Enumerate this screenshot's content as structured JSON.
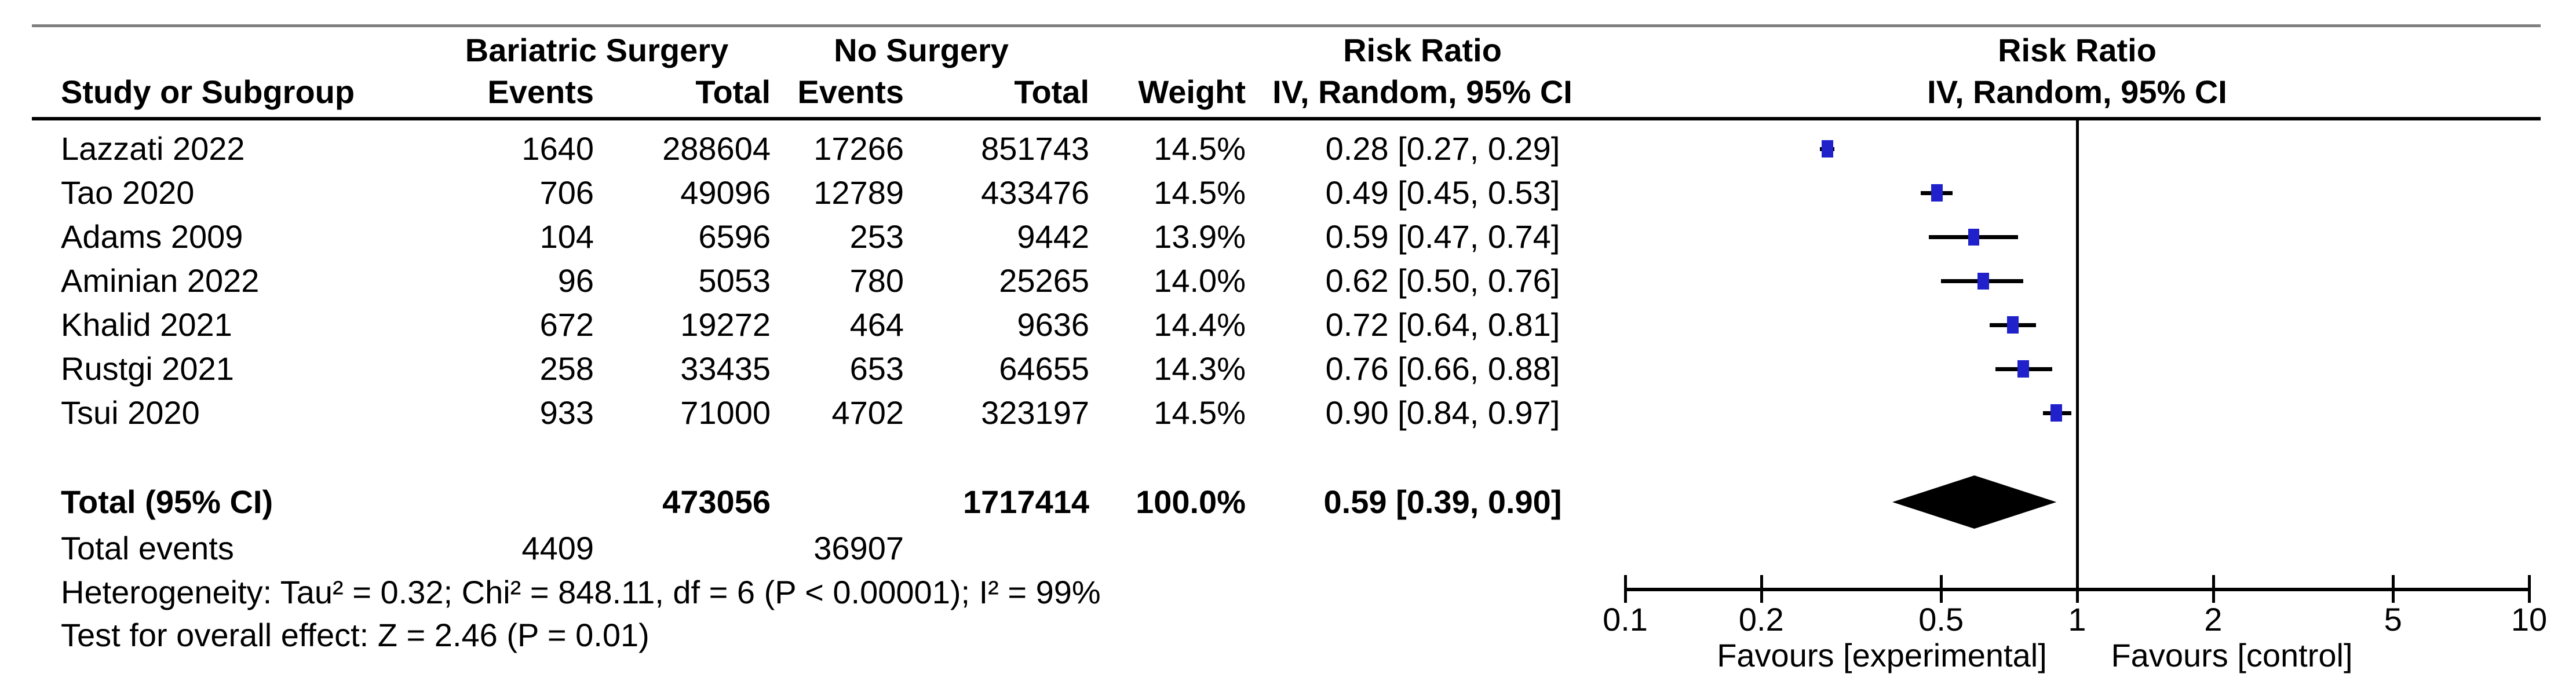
{
  "figure_colors": {
    "marker_blue": "#2121CC",
    "diamond_black": "#000000",
    "top_rule_gray": "#808080",
    "text": "#000000"
  },
  "header": {
    "group_experimental": "Bariatric Surgery",
    "group_control": "No Surgery",
    "effect_col_title": "Risk Ratio",
    "plot_col_title": "Risk Ratio",
    "col_study": "Study or Subgroup",
    "col_events_exp": "Events",
    "col_total_exp": "Total",
    "col_events_ctl": "Events",
    "col_total_ctl": "Total",
    "col_weight": "Weight",
    "col_effect_method": "IV, Random, 95% CI",
    "plot_col_method": "IV, Random, 95% CI"
  },
  "rows": [
    {
      "study": "Lazzati 2022",
      "events1": "1640",
      "total1": "288604",
      "events2": "17266",
      "total2": "851743",
      "weight": "14.5%",
      "rr_text": "0.28 [0.27, 0.29]"
    },
    {
      "study": "Tao 2020",
      "events1": "706",
      "total1": "49096",
      "events2": "12789",
      "total2": "433476",
      "weight": "14.5%",
      "rr_text": "0.49 [0.45, 0.53]"
    },
    {
      "study": "Adams 2009",
      "events1": "104",
      "total1": "6596",
      "events2": "253",
      "total2": "9442",
      "weight": "13.9%",
      "rr_text": "0.59 [0.47, 0.74]"
    },
    {
      "study": "Aminian 2022",
      "events1": "96",
      "total1": "5053",
      "events2": "780",
      "total2": "25265",
      "weight": "14.0%",
      "rr_text": "0.62 [0.50, 0.76]"
    },
    {
      "study": "Khalid 2021",
      "events1": "672",
      "total1": "19272",
      "events2": "464",
      "total2": "9636",
      "weight": "14.4%",
      "rr_text": "0.72 [0.64, 0.81]"
    },
    {
      "study": "Rustgi 2021",
      "events1": "258",
      "total1": "33435",
      "events2": "653",
      "total2": "64655",
      "weight": "14.3%",
      "rr_text": "0.76 [0.66, 0.88]"
    },
    {
      "study": "Tsui 2020",
      "events1": "933",
      "total1": "71000",
      "events2": "4702",
      "total2": "323197",
      "weight": "14.5%",
      "rr_text": "0.90 [0.84, 0.97]"
    }
  ],
  "total_row": {
    "label": "Total (95% CI)",
    "total1": "473056",
    "total2": "1717414",
    "weight": "100.0%",
    "rr_text": "0.59 [0.39, 0.90]"
  },
  "total_events_row": {
    "label": "Total events",
    "events1": "4409",
    "events2": "36907"
  },
  "footnotes": {
    "heterogeneity": "Heterogeneity: Tau² = 0.32; Chi² = 848.11, df = 6 (P < 0.00001); I² = 99%",
    "overall_effect": "Test for overall effect: Z = 2.46 (P = 0.01)"
  },
  "chart_data": {
    "type": "forest",
    "x_scale": "log10",
    "x_range": [
      0.1,
      10
    ],
    "x_ticks": [
      "0.1",
      "0.2",
      "0.5",
      "1",
      "2",
      "5",
      "10"
    ],
    "no_effect_line": 1,
    "effect_measure": "Risk Ratio",
    "model": "IV, Random, 95% CI",
    "favours_left": "Favours [experimental]",
    "favours_right": "Favours [control]",
    "studies": [
      {
        "name": "Lazzati 2022",
        "rr": 0.28,
        "ci_low": 0.27,
        "ci_high": 0.29,
        "weight_pct": 14.5
      },
      {
        "name": "Tao 2020",
        "rr": 0.49,
        "ci_low": 0.45,
        "ci_high": 0.53,
        "weight_pct": 14.5
      },
      {
        "name": "Adams 2009",
        "rr": 0.59,
        "ci_low": 0.47,
        "ci_high": 0.74,
        "weight_pct": 13.9
      },
      {
        "name": "Aminian 2022",
        "rr": 0.62,
        "ci_low": 0.5,
        "ci_high": 0.76,
        "weight_pct": 14.0
      },
      {
        "name": "Khalid 2021",
        "rr": 0.72,
        "ci_low": 0.64,
        "ci_high": 0.81,
        "weight_pct": 14.4
      },
      {
        "name": "Rustgi 2021",
        "rr": 0.76,
        "ci_low": 0.66,
        "ci_high": 0.88,
        "weight_pct": 14.3
      },
      {
        "name": "Tsui 2020",
        "rr": 0.9,
        "ci_low": 0.84,
        "ci_high": 0.97,
        "weight_pct": 14.5
      }
    ],
    "total": {
      "label": "Total (95% CI)",
      "rr": 0.59,
      "ci_low": 0.39,
      "ci_high": 0.9,
      "weight_pct": 100.0
    }
  }
}
